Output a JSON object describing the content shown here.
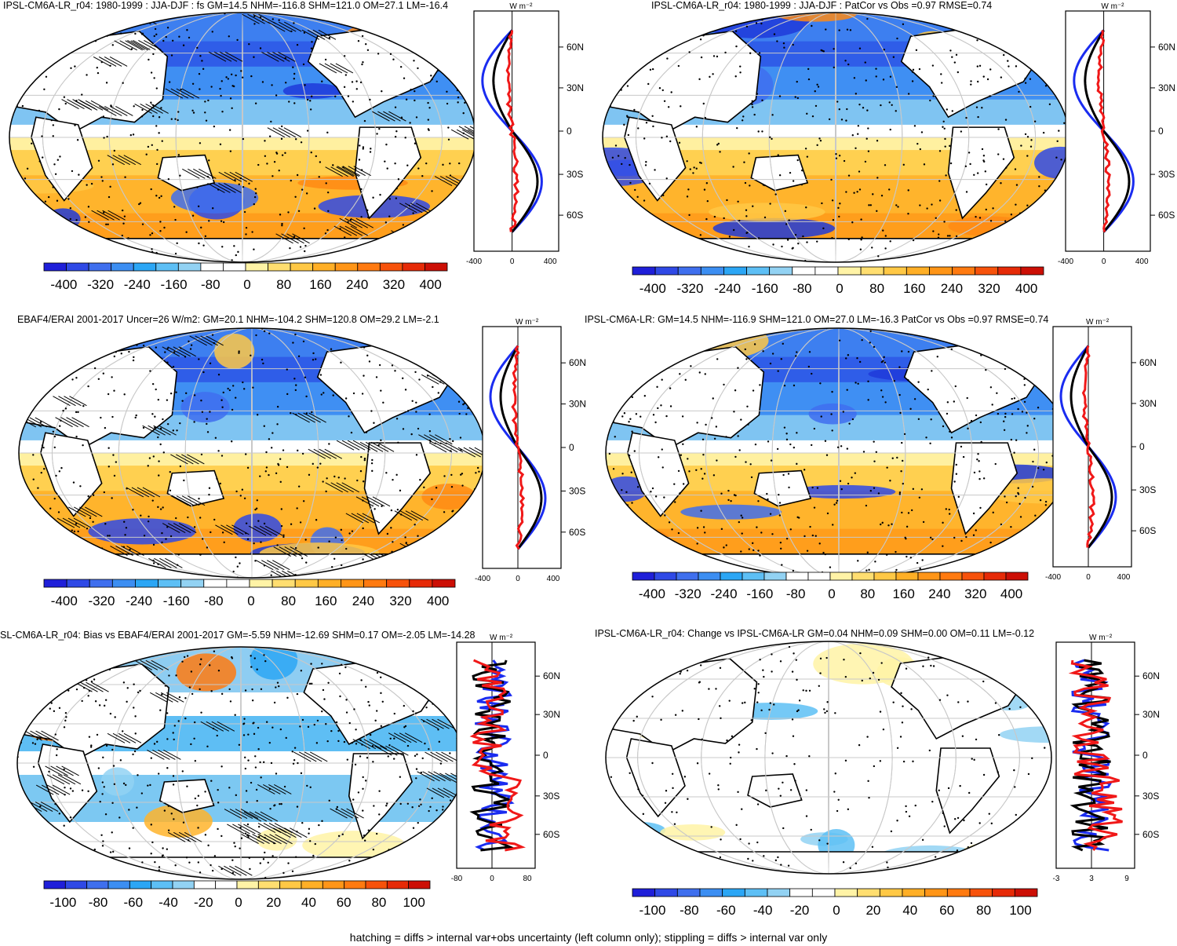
{
  "footer": "hatching = diffs > internal var+obs uncertainty (left column only); stippling = diffs > internal var only",
  "profile_unit": "W m⁻²",
  "lat_labels": [
    "60N",
    "30N",
    "0",
    "30S",
    "60S"
  ],
  "colors": {
    "blue": "#1a2cf0",
    "black": "#000000",
    "red": "#f01818",
    "land": "#ffffff",
    "grid": "#c8c8c8"
  },
  "panels": [
    {
      "id": "p1",
      "title": "IPSL-CM6A-LR_r04: 1980-1999 : JJA-DJF : fs GM=14.5 NHM=-116.8 SHM=121.0 OM=27.1 LM=-16.4",
      "colorbar_ticks": [
        "-400",
        "-320",
        "-240",
        "-160",
        "-80",
        "0",
        "80",
        "160",
        "240",
        "320",
        "400"
      ],
      "profile_ticks": [
        "-400",
        "0",
        "400"
      ],
      "field": "seasonal",
      "hatch": true
    },
    {
      "id": "p2",
      "title": "IPSL-CM6A-LR_r04: 1980-1999 : JJA-DJF : PatCor vs Obs =0.97 RMSE=0.74",
      "colorbar_ticks": [
        "-400",
        "-320",
        "-240",
        "-160",
        "-80",
        "0",
        "80",
        "160",
        "240",
        "320",
        "400"
      ],
      "profile_ticks": [
        "-400",
        "0",
        "400"
      ],
      "field": "seasonal",
      "hatch": false
    },
    {
      "id": "p3",
      "title": "EBAF4/ERAI 2001-2017 Uncer=26 W/m2: GM=20.1 NHM=-104.2 SHM=120.8 OM=29.2 LM=-2.1",
      "colorbar_ticks": [
        "-400",
        "-320",
        "-240",
        "-160",
        "-80",
        "0",
        "80",
        "160",
        "240",
        "320",
        "400"
      ],
      "profile_ticks": [
        "-400",
        "0",
        "400"
      ],
      "field": "seasonal",
      "hatch": true
    },
    {
      "id": "p4",
      "title": "IPSL-CM6A-LR: GM=14.5 NHM=-116.9 SHM=121.0 OM=27.0 LM=-16.3 PatCor vs Obs =0.97 RMSE=0.74",
      "colorbar_ticks": [
        "-400",
        "-320",
        "-240",
        "-160",
        "-80",
        "0",
        "80",
        "160",
        "240",
        "320",
        "400"
      ],
      "profile_ticks": [
        "-400",
        "0",
        "400"
      ],
      "field": "seasonal",
      "hatch": false
    },
    {
      "id": "p5",
      "title": "SL-CM6A-LR_r04: Bias vs EBAF4/ERAI 2001-2017 GM=-5.59 NHM=-12.69 SHM=0.17 OM=-2.05 LM=-14.28",
      "colorbar_ticks": [
        "-100",
        "-80",
        "-60",
        "-40",
        "-20",
        "0",
        "20",
        "40",
        "60",
        "80",
        "100"
      ],
      "profile_ticks": [
        "-80",
        "0",
        "80"
      ],
      "field": "bias",
      "hatch": true
    },
    {
      "id": "p6",
      "title": "IPSL-CM6A-LR_r04: Change vs IPSL-CM6A-LR GM=0.04 NHM=0.09 SHM=0.00 OM=0.11 LM=-0.12",
      "colorbar_ticks": [
        "-100",
        "-80",
        "-60",
        "-40",
        "-20",
        "0",
        "20",
        "40",
        "60",
        "80",
        "100"
      ],
      "profile_ticks": [
        "-3",
        "3",
        "9"
      ],
      "field": "change",
      "hatch": false
    }
  ],
  "colorbar_palette": [
    "#1f1fd9",
    "#2f49e6",
    "#3f6fee",
    "#3c8ef2",
    "#2ba6f5",
    "#5dbff5",
    "#92d2f3",
    "#ffffff",
    "#ffffff",
    "#fff3a6",
    "#ffde70",
    "#ffc845",
    "#ffaf26",
    "#ff9517",
    "#ff7a10",
    "#f7520b",
    "#e62a07",
    "#cc0f05"
  ]
}
